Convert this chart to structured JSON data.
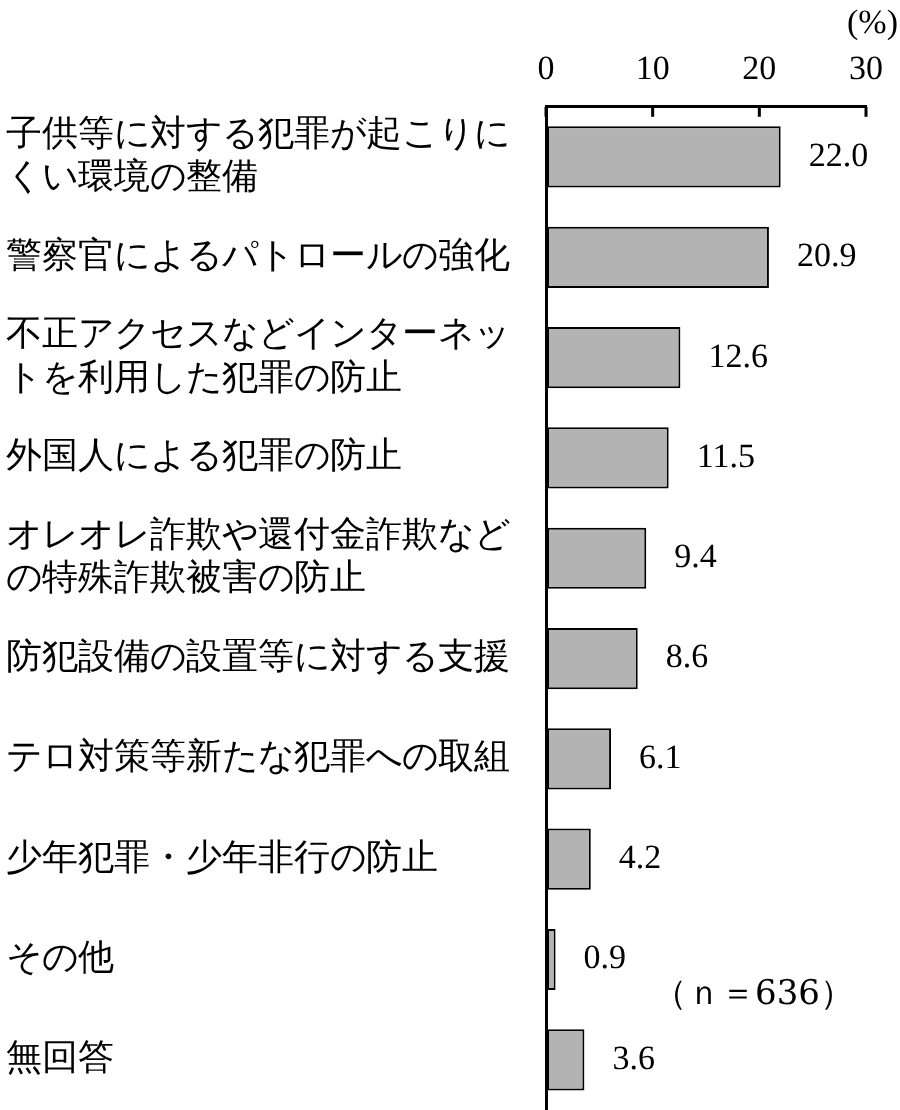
{
  "chart_data": {
    "type": "bar",
    "orientation": "horizontal",
    "xlabel": "(%)",
    "categories": [
      "子供等に対する犯罪が起こりにくい環境の整備",
      "警察官によるパトロールの強化",
      "不正アクセスなどインターネットを利用した犯罪の防止",
      "外国人による犯罪の防止",
      "オレオレ詐欺や還付金詐欺などの特殊詐欺被害の防止",
      "防犯設備の設置等に対する支援",
      "テロ対策等新たな犯罪への取組",
      "少年犯罪・少年非行の防止",
      "その他",
      "無回答"
    ],
    "values": [
      22.0,
      20.9,
      12.6,
      11.5,
      9.4,
      8.6,
      6.1,
      4.2,
      0.9,
      3.6
    ],
    "value_labels": [
      "22.0",
      "20.9",
      "12.6",
      "11.5",
      "9.4",
      "8.6",
      "6.1",
      "4.2",
      "0.9",
      "3.6"
    ],
    "color": "#b3b3b3",
    "xlim": [
      0,
      30
    ],
    "xticks": [
      0,
      10,
      20,
      30
    ],
    "annotations": [
      "（ｎ＝636）"
    ]
  }
}
